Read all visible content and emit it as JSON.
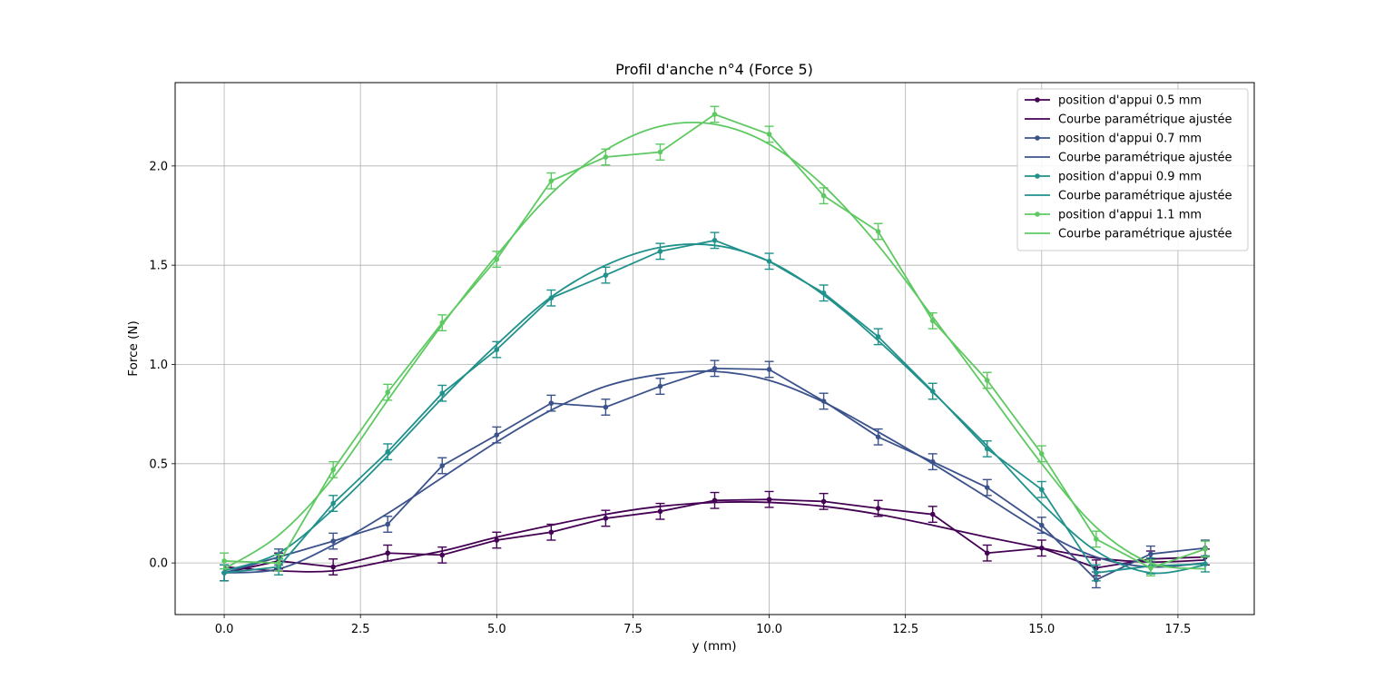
{
  "chart_data": {
    "type": "line",
    "title": "Profil d'anche n°4 (Force 5)",
    "xlabel": "y (mm)",
    "ylabel": "Force (N)",
    "xlim": [
      -0.9,
      18.9
    ],
    "ylim": [
      -0.26,
      2.42
    ],
    "xticks": [
      0.0,
      2.5,
      5.0,
      7.5,
      10.0,
      12.5,
      15.0,
      17.5
    ],
    "xtick_labels": [
      "0.0",
      "2.5",
      "5.0",
      "7.5",
      "10.0",
      "12.5",
      "15.0",
      "17.5"
    ],
    "yticks": [
      0.0,
      0.5,
      1.0,
      1.5,
      2.0
    ],
    "ytick_labels": [
      "0.0",
      "0.5",
      "1.0",
      "1.5",
      "2.0"
    ],
    "grid": true,
    "legend_position": "top-right",
    "x": [
      0,
      1,
      2,
      3,
      4,
      5,
      6,
      7,
      8,
      9,
      10,
      11,
      12,
      13,
      14,
      15,
      16,
      17,
      18
    ],
    "series": [
      {
        "name": "position d'appui 0.5 mm",
        "color": "#440154",
        "values": [
          -0.05,
          0.01,
          -0.02,
          0.05,
          0.04,
          0.115,
          0.155,
          0.225,
          0.26,
          0.315,
          0.32,
          0.31,
          0.275,
          0.245,
          0.05,
          0.075,
          -0.025,
          0.02,
          0.03
        ],
        "errors": [
          0.04,
          0.04,
          0.04,
          0.04,
          0.04,
          0.04,
          0.04,
          0.04,
          0.04,
          0.04,
          0.04,
          0.04,
          0.04,
          0.04,
          0.04,
          0.04,
          0.04,
          0.04,
          0.04
        ]
      },
      {
        "name": "Courbe paramétrique ajustée",
        "color": "#440154",
        "fit": true,
        "values": [
          -0.02,
          -0.04,
          -0.04,
          0.01,
          0.06,
          0.13,
          0.19,
          0.245,
          0.285,
          0.305,
          0.305,
          0.285,
          0.245,
          0.19,
          0.13,
          0.075,
          0.025,
          0.005,
          0.015
        ]
      },
      {
        "name": "position d'appui 0.7 mm",
        "color": "#3b528b",
        "values": [
          -0.05,
          0.03,
          0.11,
          0.195,
          0.49,
          0.645,
          0.805,
          0.785,
          0.89,
          0.98,
          0.975,
          0.815,
          0.635,
          0.51,
          0.38,
          0.19,
          -0.085,
          0.045,
          0.075
        ],
        "errors": [
          0.04,
          0.04,
          0.04,
          0.04,
          0.04,
          0.04,
          0.04,
          0.04,
          0.04,
          0.04,
          0.04,
          0.04,
          0.04,
          0.04,
          0.04,
          0.04,
          0.04,
          0.04,
          0.04
        ]
      },
      {
        "name": "Courbe paramétrique ajustée",
        "color": "#3b528b",
        "fit": true,
        "values": [
          -0.05,
          -0.03,
          0.09,
          0.25,
          0.43,
          0.61,
          0.77,
          0.89,
          0.95,
          0.965,
          0.92,
          0.81,
          0.66,
          0.5,
          0.33,
          0.16,
          0.03,
          -0.02,
          0.0
        ]
      },
      {
        "name": "position d'appui 0.9 mm",
        "color": "#21918c",
        "values": [
          -0.05,
          -0.02,
          0.3,
          0.56,
          0.855,
          1.075,
          1.335,
          1.45,
          1.57,
          1.625,
          1.52,
          1.36,
          1.14,
          0.865,
          0.575,
          0.37,
          -0.05,
          -0.015,
          -0.005
        ],
        "errors": [
          0.04,
          0.04,
          0.04,
          0.04,
          0.04,
          0.04,
          0.04,
          0.04,
          0.04,
          0.04,
          0.04,
          0.04,
          0.04,
          0.04,
          0.04,
          0.04,
          0.04,
          0.04,
          0.04
        ]
      },
      {
        "name": "Courbe paramétrique ajustée",
        "color": "#21918c",
        "fit": true,
        "values": [
          -0.04,
          0.05,
          0.27,
          0.54,
          0.83,
          1.1,
          1.34,
          1.5,
          1.59,
          1.6,
          1.52,
          1.35,
          1.12,
          0.86,
          0.59,
          0.3,
          0.06,
          -0.05,
          -0.01
        ]
      },
      {
        "name": "position d'appui 1.1 mm",
        "color": "#5ec962",
        "values": [
          0.01,
          0.0,
          0.47,
          0.86,
          1.21,
          1.53,
          1.925,
          2.045,
          2.07,
          2.26,
          2.16,
          1.85,
          1.67,
          1.22,
          0.92,
          0.55,
          0.12,
          -0.025,
          0.07
        ],
        "errors": [
          0.04,
          0.04,
          0.04,
          0.04,
          0.04,
          0.04,
          0.04,
          0.04,
          0.04,
          0.04,
          0.04,
          0.04,
          0.04,
          0.04,
          0.04,
          0.04,
          0.04,
          0.04,
          0.04
        ]
      },
      {
        "name": "Courbe paramétrique ajustée",
        "color": "#5ec962",
        "fit": true,
        "values": [
          -0.03,
          0.14,
          0.43,
          0.82,
          1.2,
          1.55,
          1.86,
          2.08,
          2.2,
          2.21,
          2.11,
          1.9,
          1.6,
          1.24,
          0.87,
          0.5,
          0.18,
          0.0,
          -0.03
        ]
      }
    ]
  }
}
